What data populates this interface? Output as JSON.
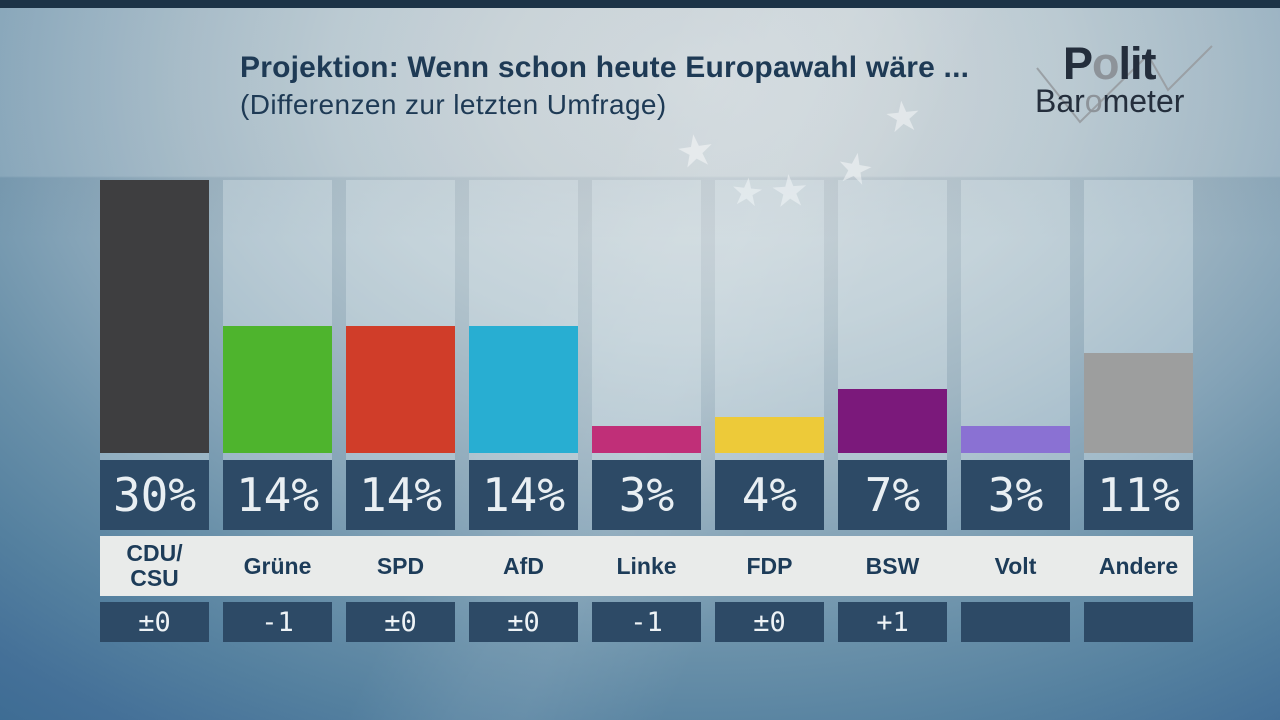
{
  "header": {
    "title": "Projektion: Wenn schon heute Europawahl wäre ...",
    "subtitle": "(Differenzen zur letzten Umfrage)"
  },
  "logo": {
    "line1_pre": "P",
    "line1_o": "o",
    "line1_post": "lit",
    "line2_pre": "Bar",
    "line2_o": "o",
    "line2_post": "meter",
    "navy": "#242e3c",
    "gray": "#8d9399"
  },
  "watermark": {
    "star_glyph": "★"
  },
  "colors": {
    "box_bg": "#2d4a66",
    "name_strip_bg": "#e9ebea",
    "title_text": "#1e3a55",
    "value_text": "#e9eff3"
  },
  "chart_data": {
    "type": "bar",
    "title": "Projektion: Wenn schon heute Europawahl wäre ...",
    "subtitle": "(Differenzen zur letzten Umfrage)",
    "ylim": [
      0,
      30
    ],
    "grid": false,
    "legend": "none",
    "categories": [
      "CDU/CSU",
      "Grüne",
      "SPD",
      "AfD",
      "Linke",
      "FDP",
      "BSW",
      "Volt",
      "Andere"
    ],
    "values": [
      30,
      14,
      14,
      14,
      3,
      4,
      7,
      3,
      11
    ],
    "parties": [
      {
        "name": "CDU/\nCSU",
        "value": 30,
        "label": "30%",
        "diff": "±0",
        "color": "#3e3e40"
      },
      {
        "name": "Grüne",
        "value": 14,
        "label": "14%",
        "diff": "-1",
        "color": "#4eb42d"
      },
      {
        "name": "SPD",
        "value": 14,
        "label": "14%",
        "diff": "±0",
        "color": "#d03d29"
      },
      {
        "name": "AfD",
        "value": 14,
        "label": "14%",
        "diff": "±0",
        "color": "#28aed2"
      },
      {
        "name": "Linke",
        "value": 3,
        "label": "3%",
        "diff": "-1",
        "color": "#c02f78"
      },
      {
        "name": "FDP",
        "value": 4,
        "label": "4%",
        "diff": "±0",
        "color": "#edca39"
      },
      {
        "name": "BSW",
        "value": 7,
        "label": "7%",
        "diff": "+1",
        "color": "#7b197b"
      },
      {
        "name": "Volt",
        "value": 3,
        "label": "3%",
        "diff": "",
        "color": "#8a71d3"
      },
      {
        "name": "Andere",
        "value": 11,
        "label": "11%",
        "diff": "",
        "color": "#9d9e9e"
      }
    ]
  }
}
